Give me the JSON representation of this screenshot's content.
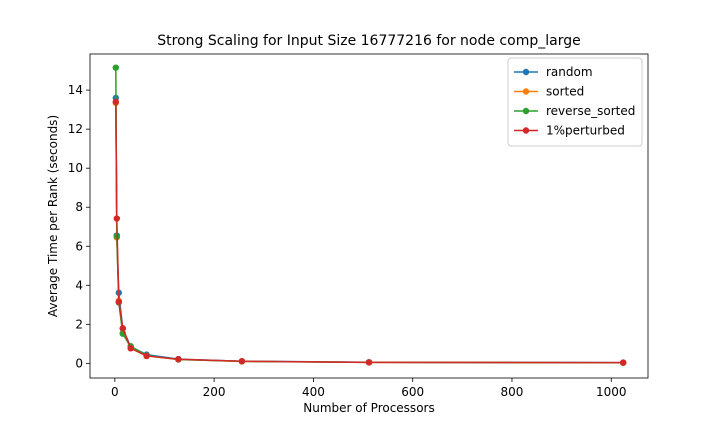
{
  "chart_data": {
    "type": "line",
    "title": "Strong Scaling for Input Size 16777216 for node comp_large",
    "xlabel": "Number of Processors",
    "ylabel": "Average Time per Rank (seconds)",
    "xlim": [
      -50,
      1074
    ],
    "ylim": [
      -0.75,
      15.85
    ],
    "xticks": [
      0,
      200,
      400,
      600,
      800,
      1000
    ],
    "yticks": [
      0,
      2,
      4,
      6,
      8,
      10,
      12,
      14
    ],
    "grid": false,
    "legend_position": "top-right",
    "x": [
      2,
      4,
      8,
      16,
      32,
      64,
      128,
      256,
      512,
      1024
    ],
    "series": [
      {
        "name": "random",
        "color": "#1f77b4",
        "values": [
          13.6,
          6.55,
          3.62,
          1.78,
          0.85,
          0.45,
          0.22,
          0.11,
          0.06,
          0.04
        ]
      },
      {
        "name": "sorted",
        "color": "#ff7f0e",
        "values": [
          13.35,
          6.45,
          3.2,
          1.55,
          0.8,
          0.38,
          0.2,
          0.1,
          0.05,
          0.03
        ]
      },
      {
        "name": "reverse_sorted",
        "color": "#2ca02c",
        "values": [
          15.15,
          6.5,
          3.12,
          1.52,
          0.88,
          0.4,
          0.2,
          0.1,
          0.05,
          0.03
        ]
      },
      {
        "name": "1%perturbed",
        "color": "#d62728",
        "values": [
          13.4,
          7.42,
          3.15,
          1.8,
          0.77,
          0.38,
          0.21,
          0.11,
          0.05,
          0.04
        ]
      }
    ]
  }
}
